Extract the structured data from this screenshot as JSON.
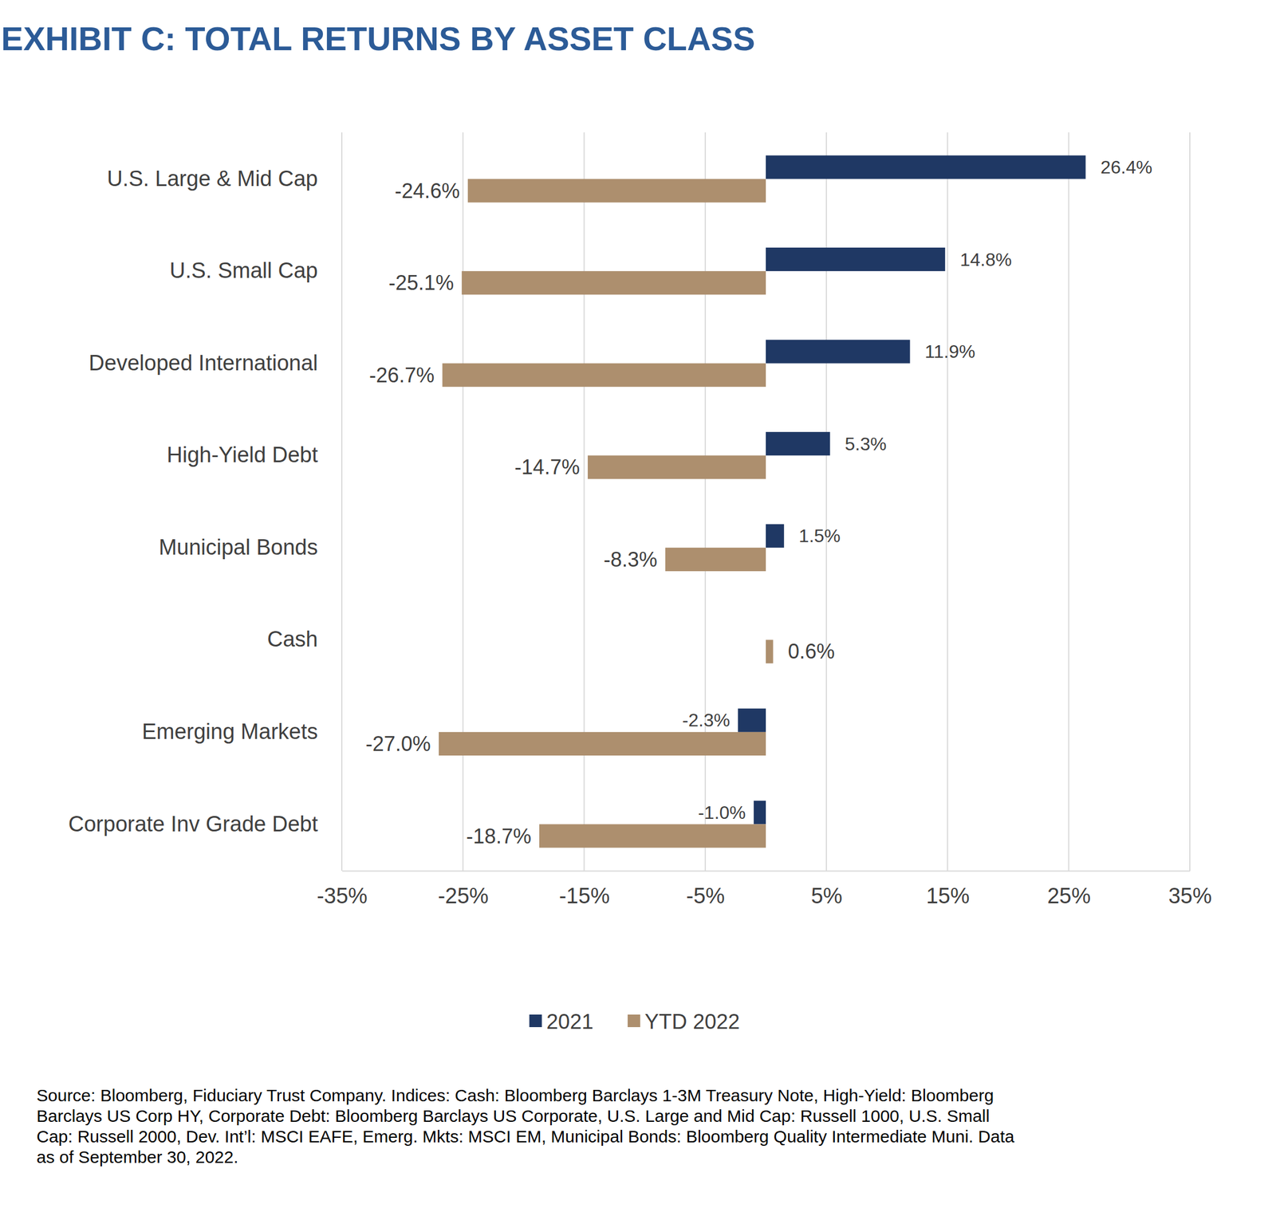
{
  "chart_data": {
    "type": "bar",
    "orientation": "horizontal",
    "title": "EXHIBIT C: TOTAL RETURNS BY ASSET CLASS",
    "categories": [
      "U.S. Large & Mid Cap",
      "U.S. Small Cap",
      "Developed International",
      "High-Yield Debt",
      "Municipal Bonds",
      "Cash",
      "Emerging Markets",
      "Corporate Inv Grade Debt"
    ],
    "series": [
      {
        "name": "2021",
        "color": "#1f3864",
        "values": [
          26.4,
          14.8,
          11.9,
          5.3,
          1.5,
          null,
          -2.3,
          -1.0
        ],
        "value_labels": [
          "26.4%",
          "14.8%",
          "11.9%",
          "5.3%",
          "1.5%",
          null,
          "-2.3%",
          "-1.0%"
        ]
      },
      {
        "name": "YTD 2022",
        "color": "#ad8f6e",
        "values": [
          -24.6,
          -25.1,
          -26.7,
          -14.7,
          -8.3,
          0.6,
          -27.0,
          -18.7
        ],
        "value_labels": [
          "-24.6%",
          "-25.1%",
          "-26.7%",
          "-14.7%",
          "-8.3%",
          "0.6%",
          "-27.0%",
          "-18.7%"
        ]
      }
    ],
    "xlim": [
      -35,
      35
    ],
    "xticks": [
      {
        "value": -35,
        "label": "-35%"
      },
      {
        "value": -25,
        "label": "-25%"
      },
      {
        "value": -15,
        "label": "-15%"
      },
      {
        "value": -5,
        "label": "-5%"
      },
      {
        "value": 5,
        "label": "5%"
      },
      {
        "value": 15,
        "label": "15%"
      },
      {
        "value": 25,
        "label": "25%"
      },
      {
        "value": 35,
        "label": "35%"
      }
    ],
    "grid": true,
    "data_labels": true,
    "legend": "bottom",
    "source": [
      "Source: Bloomberg, Fiduciary Trust Company. Indices: Cash: Bloomberg Barclays 1-3M Treasury Note, High-Yield: Bloomberg",
      "Barclays US Corp HY, Corporate Debt: Bloomberg Barclays US Corporate, U.S. Large and Mid Cap: Russell 1000, U.S. Small",
      "Cap: Russell 2000, Dev. Int’l: MSCI EAFE, Emerg. Mkts: MSCI EM, Municipal Bonds: Bloomberg Quality Intermediate Muni. Data",
      "as of September 30, 2022."
    ]
  }
}
